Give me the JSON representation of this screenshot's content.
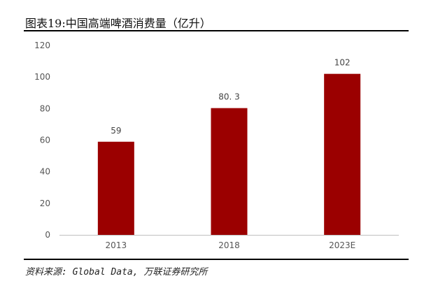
{
  "header": {
    "title": "图表19:中国高端啤酒消费量（亿升）"
  },
  "footer": {
    "source": "资料来源: Global Data, 万联证券研究所"
  },
  "colors": {
    "bar": "#9b0000",
    "axis": "#bfbfbf"
  },
  "chart_data": {
    "type": "bar",
    "title": "图表19:中国高端啤酒消费量（亿升）",
    "categories": [
      "2013",
      "2018",
      "2023E"
    ],
    "values": [
      59,
      80.3,
      102
    ],
    "data_labels": [
      "59",
      "80. 3",
      "102"
    ],
    "yticks": [
      0,
      20,
      40,
      60,
      80,
      100,
      120
    ],
    "ylim": [
      0,
      120
    ],
    "grid": false,
    "legend": "none",
    "xlabel": "",
    "ylabel": ""
  }
}
